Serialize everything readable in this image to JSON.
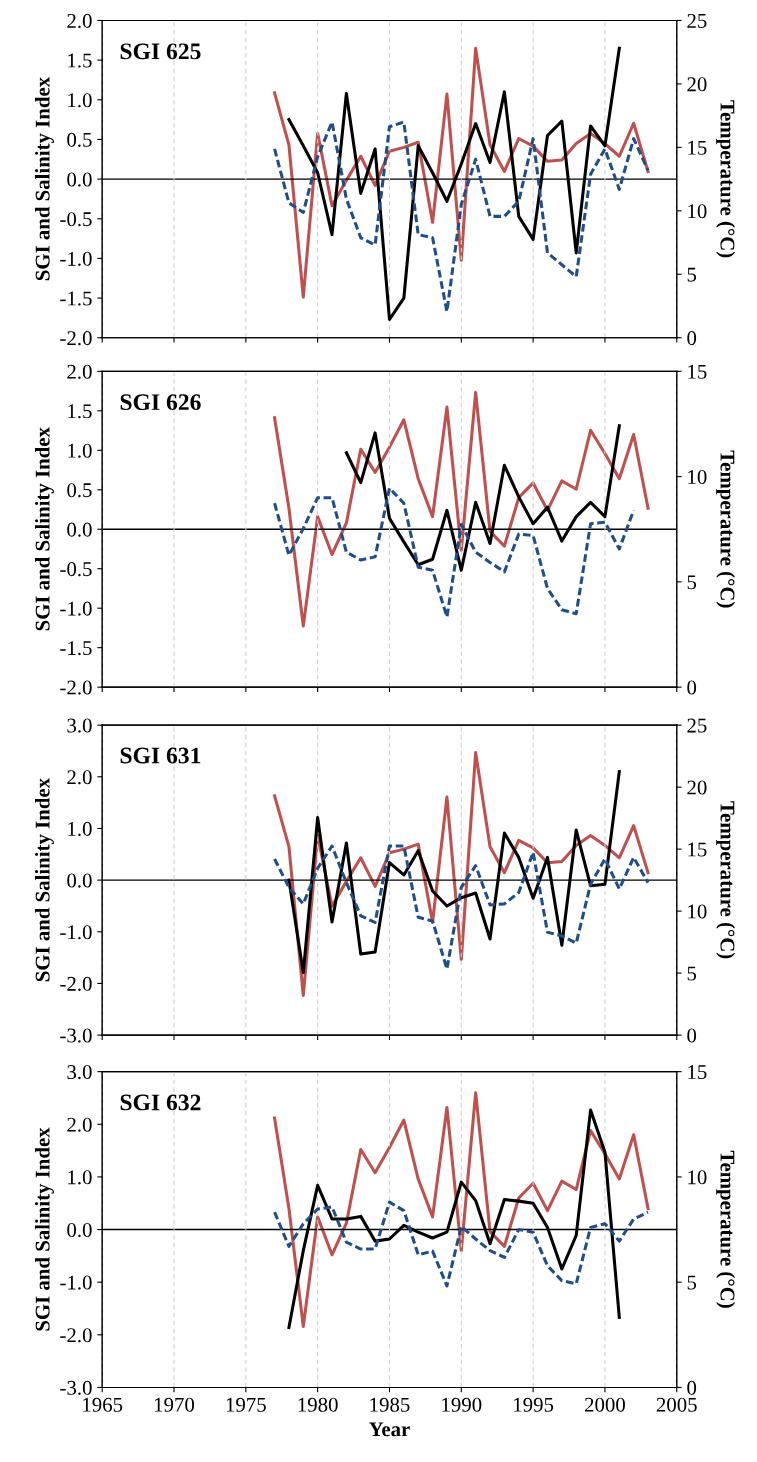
{
  "chart_data": [
    {
      "type": "line",
      "title": "SGI 625",
      "ylabel": "SGI and Salinity Index",
      "y2label": "Temperature (°C)",
      "x": [
        1977,
        1978,
        1979,
        1980,
        1981,
        1982,
        1983,
        1984,
        1985,
        1986,
        1987,
        1988,
        1989,
        1990,
        1991,
        1992,
        1993,
        1994,
        1995,
        1996,
        1997,
        1998,
        1999,
        2000,
        2001,
        2002,
        2003
      ],
      "series": [
        {
          "color": "#000000",
          "line_style": "solid",
          "values": [
            null,
            0.75,
            0.42,
            0.08,
            -0.7,
            1.08,
            -0.18,
            0.38,
            -1.77,
            -1.5,
            0.42,
            0.08,
            -0.28,
            0.19,
            0.7,
            0.21,
            1.1,
            -0.47,
            -0.76,
            0.55,
            0.73,
            -0.93,
            0.67,
            0.42,
            1.65,
            null,
            null
          ]
        },
        {
          "color": "#1f4e8c",
          "line_style": "dashed",
          "values": [
            0.38,
            -0.3,
            -0.42,
            0.28,
            0.72,
            -0.25,
            -0.74,
            -0.83,
            0.66,
            0.72,
            -0.7,
            -0.74,
            -1.67,
            -0.32,
            0.25,
            -0.47,
            -0.47,
            -0.28,
            0.51,
            -0.93,
            -1.08,
            -1.23,
            0.06,
            0.38,
            -0.13,
            0.51,
            0.11
          ]
        },
        {
          "color": "#c0504d",
          "line_style": "solid",
          "axis": "y2",
          "values": [
            19.3,
            15.2,
            3.2,
            16.1,
            10.4,
            12.4,
            14.3,
            12.0,
            14.7,
            15.0,
            15.4,
            9.1,
            19.2,
            6.1,
            22.8,
            15.2,
            13.1,
            15.7,
            15.1,
            13.9,
            14.0,
            15.3,
            16.1,
            15.3,
            14.3,
            16.9,
            13.1
          ]
        }
      ],
      "xlim": [
        1965,
        2005
      ],
      "xticks": [
        1965,
        1970,
        1975,
        1980,
        1985,
        1990,
        1995,
        2000,
        2005
      ],
      "ylim": [
        -2,
        2
      ],
      "yticks": [
        {
          "value": -2,
          "label": "-2.0"
        },
        {
          "value": -1.5,
          "label": "-1.5"
        },
        {
          "value": -1,
          "label": "-1.0"
        },
        {
          "value": -0.5,
          "label": "-0.5"
        },
        {
          "value": 0,
          "label": "0.0"
        },
        {
          "value": 0.5,
          "label": "0.5"
        },
        {
          "value": 1,
          "label": "1.0"
        },
        {
          "value": 1.5,
          "label": "1.5"
        },
        {
          "value": 2,
          "label": "2.0"
        }
      ],
      "y2lim": [
        0,
        25
      ],
      "y2ticks": [
        0,
        5,
        10,
        15,
        20,
        25
      ],
      "ref_lines": [
        {
          "axis": "y",
          "value": 0,
          "color": "#000000"
        }
      ],
      "grid": "x",
      "tick_labels": "y",
      "marker": "none"
    },
    {
      "type": "line",
      "title": "SGI 626",
      "ylabel": "SGI and Salinity Index",
      "y2label": "Temperature (°C)",
      "x": [
        1977,
        1978,
        1979,
        1980,
        1981,
        1982,
        1983,
        1984,
        1985,
        1986,
        1987,
        1988,
        1989,
        1990,
        1991,
        1992,
        1993,
        1994,
        1995,
        1996,
        1997,
        1998,
        1999,
        2000,
        2001,
        2002,
        2003
      ],
      "series": [
        {
          "color": "#000000",
          "line_style": "solid",
          "values": [
            null,
            null,
            null,
            null,
            null,
            0.97,
            0.59,
            1.22,
            0.14,
            -0.16,
            -0.45,
            -0.38,
            0.24,
            -0.52,
            0.34,
            -0.18,
            0.81,
            0.41,
            0.07,
            0.28,
            -0.15,
            0.16,
            0.34,
            0.16,
            1.31,
            null,
            null
          ]
        },
        {
          "color": "#1f4e8c",
          "line_style": "dashed",
          "values": [
            0.33,
            -0.33,
            0.01,
            0.4,
            0.4,
            -0.29,
            -0.39,
            -0.35,
            0.52,
            0.33,
            -0.48,
            -0.52,
            -1.11,
            0.06,
            -0.29,
            -0.42,
            -0.54,
            -0.06,
            -0.08,
            -0.75,
            -1.02,
            -1.07,
            0.07,
            0.09,
            -0.25,
            0.24,
            null
          ]
        },
        {
          "color": "#c0504d",
          "line_style": "solid",
          "axis": "y2",
          "values": [
            12.8,
            8.5,
            2.9,
            8.1,
            6.3,
            7.8,
            11.3,
            10.2,
            11.4,
            12.7,
            9.9,
            8.1,
            13.3,
            6.5,
            14.0,
            7.4,
            6.7,
            9.0,
            9.7,
            8.4,
            9.8,
            9.4,
            12.2,
            11.1,
            9.9,
            12.0,
            8.5
          ]
        }
      ],
      "xlim": [
        1965,
        2005
      ],
      "xticks": [
        1965,
        1970,
        1975,
        1980,
        1985,
        1990,
        1995,
        2000,
        2005
      ],
      "ylim": [
        -2,
        2
      ],
      "yticks": [
        {
          "value": -2,
          "label": "-2.0"
        },
        {
          "value": -1.5,
          "label": "-1.5"
        },
        {
          "value": -1,
          "label": "-1.0"
        },
        {
          "value": -0.5,
          "label": "-0.5"
        },
        {
          "value": 0,
          "label": "0.0"
        },
        {
          "value": 0.5,
          "label": "0.5"
        },
        {
          "value": 1,
          "label": "1.0"
        },
        {
          "value": 1.5,
          "label": "1.5"
        },
        {
          "value": 2,
          "label": "2.0"
        }
      ],
      "y2lim": [
        0,
        15
      ],
      "y2ticks": [
        0,
        5,
        10,
        15
      ],
      "ref_lines": [
        {
          "axis": "y",
          "value": 0,
          "color": "#000000"
        }
      ],
      "grid": "x",
      "tick_labels": "y",
      "marker": "none"
    },
    {
      "type": "line",
      "title": "SGI 631",
      "ylabel": "SGI and Salinity Index",
      "y2label": "Temperature (°C)",
      "x": [
        1977,
        1978,
        1979,
        1980,
        1981,
        1982,
        1983,
        1984,
        1985,
        1986,
        1987,
        1988,
        1989,
        1990,
        1991,
        1992,
        1993,
        1994,
        1995,
        1996,
        1997,
        1998,
        1999,
        2000,
        2001,
        2002,
        2003
      ],
      "series": [
        {
          "color": "#000000",
          "line_style": "solid",
          "values": [
            null,
            0.0,
            -1.79,
            1.21,
            -0.81,
            0.72,
            -1.43,
            -1.39,
            0.34,
            0.1,
            0.57,
            -0.21,
            -0.5,
            -0.34,
            -0.25,
            -1.14,
            0.91,
            0.44,
            -0.35,
            0.44,
            -1.26,
            0.97,
            -0.11,
            -0.08,
            2.1,
            null,
            null
          ]
        },
        {
          "color": "#1f4e8c",
          "line_style": "dashed",
          "values": [
            0.41,
            -0.14,
            -0.46,
            0.23,
            0.66,
            -0.05,
            -0.69,
            -0.82,
            0.66,
            0.66,
            -0.72,
            -0.79,
            -1.72,
            -0.14,
            0.28,
            -0.48,
            -0.46,
            -0.24,
            0.54,
            -1.01,
            -1.08,
            -1.22,
            -0.08,
            0.41,
            -0.17,
            0.44,
            -0.05
          ]
        },
        {
          "color": "#c0504d",
          "line_style": "solid",
          "axis": "y2",
          "values": [
            19.3,
            15.2,
            3.2,
            16.1,
            10.4,
            12.4,
            14.3,
            12.0,
            14.7,
            15.0,
            15.4,
            9.1,
            19.2,
            6.1,
            22.8,
            15.2,
            13.1,
            15.7,
            15.1,
            13.9,
            14.0,
            15.3,
            16.1,
            15.3,
            14.3,
            16.9,
            13.1
          ]
        }
      ],
      "xlim": [
        1965,
        2005
      ],
      "xticks": [
        1965,
        1970,
        1975,
        1980,
        1985,
        1990,
        1995,
        2000,
        2005
      ],
      "ylim": [
        -3,
        3
      ],
      "yticks": [
        {
          "value": -3,
          "label": "-3.0"
        },
        {
          "value": -2,
          "label": "-2.0"
        },
        {
          "value": -1,
          "label": "-1.0"
        },
        {
          "value": 0,
          "label": "0.0"
        },
        {
          "value": 1,
          "label": "1.0"
        },
        {
          "value": 2,
          "label": "2.0"
        },
        {
          "value": 3,
          "label": "3.0"
        }
      ],
      "y2lim": [
        0,
        25
      ],
      "y2ticks": [
        0,
        5,
        10,
        15,
        20,
        25
      ],
      "ref_lines": [
        {
          "axis": "y",
          "value": 0,
          "color": "#000000"
        }
      ],
      "grid": "x",
      "tick_labels": "y",
      "marker": "none"
    },
    {
      "type": "line",
      "title": "SGI 632",
      "ylabel": "SGI and Salinity Index",
      "y2label": "Temperature (°C)",
      "xlabel": "Year",
      "x": [
        1977,
        1978,
        1979,
        1980,
        1981,
        1982,
        1983,
        1984,
        1985,
        1986,
        1987,
        1988,
        1989,
        1990,
        1991,
        1992,
        1993,
        1994,
        1995,
        1996,
        1997,
        1998,
        1999,
        2000,
        2001,
        2002,
        2003
      ],
      "series": [
        {
          "color": "#000000",
          "line_style": "solid",
          "values": [
            null,
            -1.86,
            -0.4,
            0.84,
            0.2,
            0.2,
            0.25,
            -0.22,
            -0.18,
            0.08,
            -0.05,
            -0.16,
            -0.05,
            0.9,
            0.55,
            -0.27,
            0.57,
            0.54,
            0.5,
            0.04,
            -0.75,
            -0.11,
            2.27,
            1.47,
            -1.67,
            null,
            null
          ]
        },
        {
          "color": "#1f4e8c",
          "line_style": "dashed",
          "values": [
            0.33,
            -0.32,
            0.11,
            0.39,
            0.43,
            -0.24,
            -0.37,
            -0.37,
            0.52,
            0.36,
            -0.48,
            -0.41,
            -1.07,
            0.06,
            -0.18,
            -0.4,
            -0.53,
            0.0,
            -0.05,
            -0.69,
            -0.97,
            -1.03,
            0.04,
            0.11,
            -0.22,
            0.2,
            0.33
          ]
        },
        {
          "color": "#c0504d",
          "line_style": "solid",
          "axis": "y2",
          "values": [
            12.8,
            8.5,
            2.9,
            8.1,
            6.3,
            7.8,
            11.3,
            10.2,
            11.4,
            12.7,
            9.9,
            8.1,
            13.3,
            6.5,
            14.0,
            7.4,
            6.7,
            9.0,
            9.7,
            8.4,
            9.8,
            9.4,
            12.2,
            11.1,
            9.9,
            12.0,
            8.5
          ]
        }
      ],
      "xlim": [
        1965,
        2005
      ],
      "xticks": [
        1965,
        1970,
        1975,
        1980,
        1985,
        1990,
        1995,
        2000,
        2005
      ],
      "ylim": [
        -3,
        3
      ],
      "yticks": [
        {
          "value": -3,
          "label": "-3.0"
        },
        {
          "value": -2,
          "label": "-2.0"
        },
        {
          "value": -1,
          "label": "-1.0"
        },
        {
          "value": 0,
          "label": "0.0"
        },
        {
          "value": 1,
          "label": "1.0"
        },
        {
          "value": 2,
          "label": "2.0"
        },
        {
          "value": 3,
          "label": "3.0"
        }
      ],
      "y2lim": [
        0,
        15
      ],
      "y2ticks": [
        0,
        5,
        10,
        15
      ],
      "ref_lines": [
        {
          "axis": "y",
          "value": 0,
          "color": "#000000"
        }
      ],
      "grid": "x",
      "marker": "none"
    }
  ]
}
